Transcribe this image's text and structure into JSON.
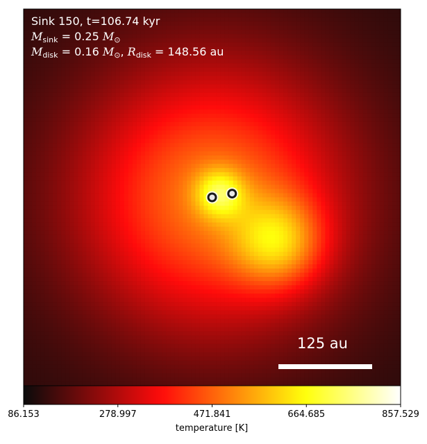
{
  "chart_data": {
    "type": "heatmap",
    "title": "",
    "annotation": {
      "line1": "Sink 150, t=106.74 kyr",
      "m_sink_symbol": "M",
      "m_sink_sub": "sink",
      "m_sink_value": "= 0.25",
      "m_disk_symbol": "M",
      "m_disk_sub": "disk",
      "m_disk_value": "= 0.16",
      "r_disk_symbol": "R",
      "r_disk_sub": "disk",
      "r_disk_value": "= 148.56 au",
      "solar_mass_unit": "M",
      "solar_sub": "⊙"
    },
    "scale_bar_label": "125 au",
    "colorbar": {
      "label": "temperature [K]",
      "colormap": "hot",
      "vmin": 86.153,
      "vmax": 857.529,
      "ticks": [
        86.153,
        278.997,
        471.841,
        664.685,
        857.529
      ],
      "tick_labels": [
        "86.153",
        "278.997",
        "471.841",
        "664.685",
        "857.529"
      ]
    },
    "colors": {
      "background": "#ffffff",
      "scale_bar": "#ffffff",
      "sink_marker_fill": "#1a1a1a",
      "sink_marker_edge": "#ffffff"
    },
    "field": {
      "description_units": "temperature [K] at normalized frame coordinates (x right, y down)",
      "background_temp": 120,
      "sources": [
        {
          "x": 0.5,
          "y": 0.5,
          "sigma": 0.26,
          "peak_temp": 380
        },
        {
          "x": 0.675,
          "y": 0.62,
          "sigma": 0.085,
          "peak_temp": 260
        },
        {
          "x": 0.52,
          "y": 0.49,
          "sigma": 0.045,
          "peak_temp": 230
        }
      ]
    },
    "sinks": [
      {
        "id": 1,
        "x": 0.5,
        "y": 0.5,
        "temperature": 857.529
      },
      {
        "id": 2,
        "x": 0.553,
        "y": 0.49,
        "temperature": 857.529
      }
    ]
  }
}
